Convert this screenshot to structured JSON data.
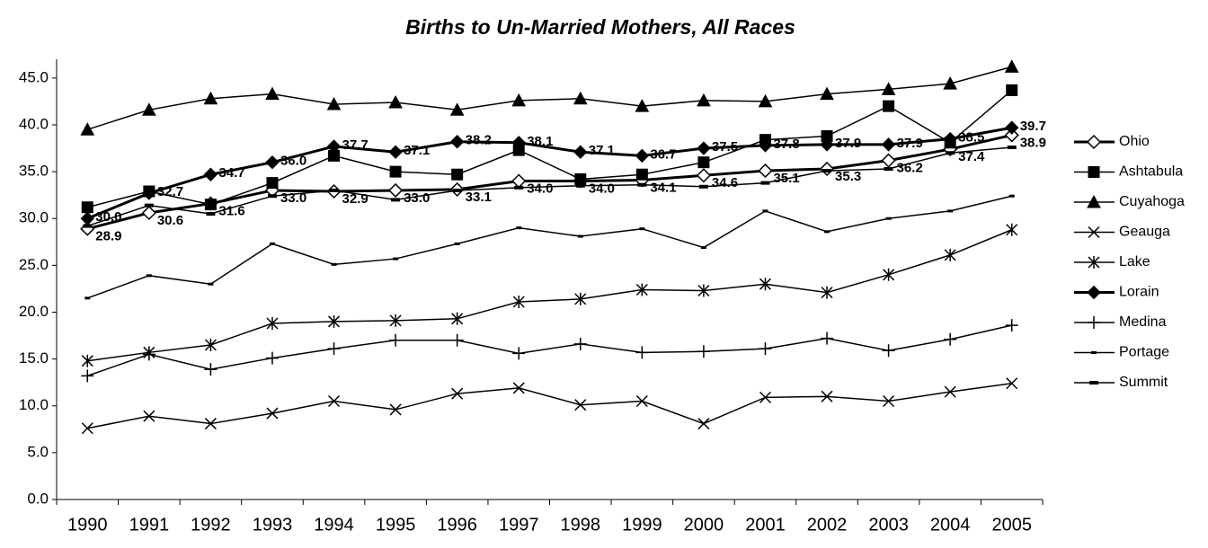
{
  "chart_data": {
    "type": "line",
    "title": "Births to Un-Married Mothers, All Races",
    "categories": [
      "1990",
      "1991",
      "1992",
      "1993",
      "1994",
      "1995",
      "1996",
      "1997",
      "1998",
      "1999",
      "2000",
      "2001",
      "2002",
      "2003",
      "2004",
      "2005"
    ],
    "ylim": [
      0,
      47
    ],
    "yticks": [
      {
        "value": 0,
        "label": "0.0"
      },
      {
        "value": 5,
        "label": "5.0"
      },
      {
        "value": 10,
        "label": "10.0"
      },
      {
        "value": 15,
        "label": "15.0"
      },
      {
        "value": 20,
        "label": "20.0"
      },
      {
        "value": 25,
        "label": "25.0"
      },
      {
        "value": 30,
        "label": "30.0"
      },
      {
        "value": 35,
        "label": "35.0"
      },
      {
        "value": 40,
        "label": "40.0"
      },
      {
        "value": 45,
        "label": "45.0"
      }
    ],
    "grid": false,
    "legend": "right",
    "series": [
      {
        "name": "Ohio",
        "color": "#000000",
        "marker": "diamond-open",
        "line_width": 3,
        "values": [
          28.9,
          30.6,
          31.6,
          33.0,
          32.9,
          33.0,
          33.1,
          34.0,
          34.0,
          34.1,
          34.6,
          35.1,
          35.3,
          36.2,
          37.4,
          38.9
        ],
        "value_labels": [
          "28.9",
          "30.6",
          "31.6",
          "33.0",
          "32.9",
          "33.0",
          "33.1",
          "34.0",
          "34.0",
          "34.1",
          "34.6",
          "35.1",
          "35.3",
          "36.2",
          "37.4",
          "38.9"
        ]
      },
      {
        "name": "Ashtabula",
        "color": "#000000",
        "marker": "square",
        "line_width": 1.5,
        "values": [
          31.2,
          32.9,
          31.5,
          33.8,
          36.7,
          35.0,
          34.7,
          37.3,
          34.2,
          34.7,
          36.0,
          38.4,
          38.8,
          42.0,
          38.1,
          43.7
        ]
      },
      {
        "name": "Cuyahoga",
        "color": "#000000",
        "marker": "triangle",
        "line_width": 1.5,
        "values": [
          39.5,
          41.6,
          42.8,
          43.3,
          42.2,
          42.4,
          41.6,
          42.6,
          42.8,
          42.0,
          42.6,
          42.5,
          43.3,
          43.8,
          44.4,
          46.2
        ]
      },
      {
        "name": "Geauga",
        "color": "#000000",
        "marker": "x",
        "line_width": 1.5,
        "values": [
          7.6,
          8.9,
          8.1,
          9.2,
          10.5,
          9.6,
          11.3,
          11.9,
          10.1,
          10.5,
          8.1,
          10.9,
          11.0,
          10.5,
          11.5,
          12.4
        ]
      },
      {
        "name": "Lake",
        "color": "#000000",
        "marker": "asterisk",
        "line_width": 1.5,
        "values": [
          14.8,
          15.7,
          16.5,
          18.8,
          19.0,
          19.1,
          19.3,
          21.1,
          21.4,
          22.4,
          22.3,
          23.0,
          22.1,
          24.0,
          26.1,
          28.8
        ]
      },
      {
        "name": "Lorain",
        "color": "#000000",
        "marker": "diamond",
        "line_width": 3,
        "values": [
          30.0,
          32.7,
          34.7,
          36.0,
          37.7,
          37.1,
          38.2,
          38.1,
          37.1,
          36.7,
          37.5,
          37.8,
          37.9,
          37.9,
          38.5,
          39.7
        ],
        "value_labels": [
          "30.0",
          "32.7",
          "34.7",
          "36.0",
          "37.7",
          "37.1",
          "38.2",
          "38.1",
          "37.1",
          "36.7",
          "37.5",
          "37.8",
          "37.9",
          "37.9",
          "38.5",
          "39.7"
        ]
      },
      {
        "name": "Medina",
        "color": "#000000",
        "marker": "plus",
        "line_width": 1.5,
        "values": [
          13.2,
          15.5,
          13.9,
          15.1,
          16.1,
          17.0,
          17.0,
          15.6,
          16.6,
          15.7,
          15.8,
          16.1,
          17.2,
          15.9,
          17.1,
          18.6
        ]
      },
      {
        "name": "Portage",
        "color": "#000000",
        "marker": "dash-small",
        "line_width": 1.5,
        "values": [
          21.5,
          23.9,
          23.0,
          27.3,
          25.1,
          25.7,
          27.3,
          29.0,
          28.1,
          28.9,
          26.9,
          30.8,
          28.6,
          30.0,
          30.8,
          32.4
        ]
      },
      {
        "name": "Summit",
        "color": "#000000",
        "marker": "dash",
        "line_width": 1.5,
        "values": [
          29.2,
          31.4,
          30.5,
          32.4,
          33.0,
          32.0,
          33.0,
          33.3,
          33.5,
          33.6,
          33.4,
          33.8,
          35.1,
          35.3,
          37.0,
          37.6
        ]
      }
    ]
  }
}
